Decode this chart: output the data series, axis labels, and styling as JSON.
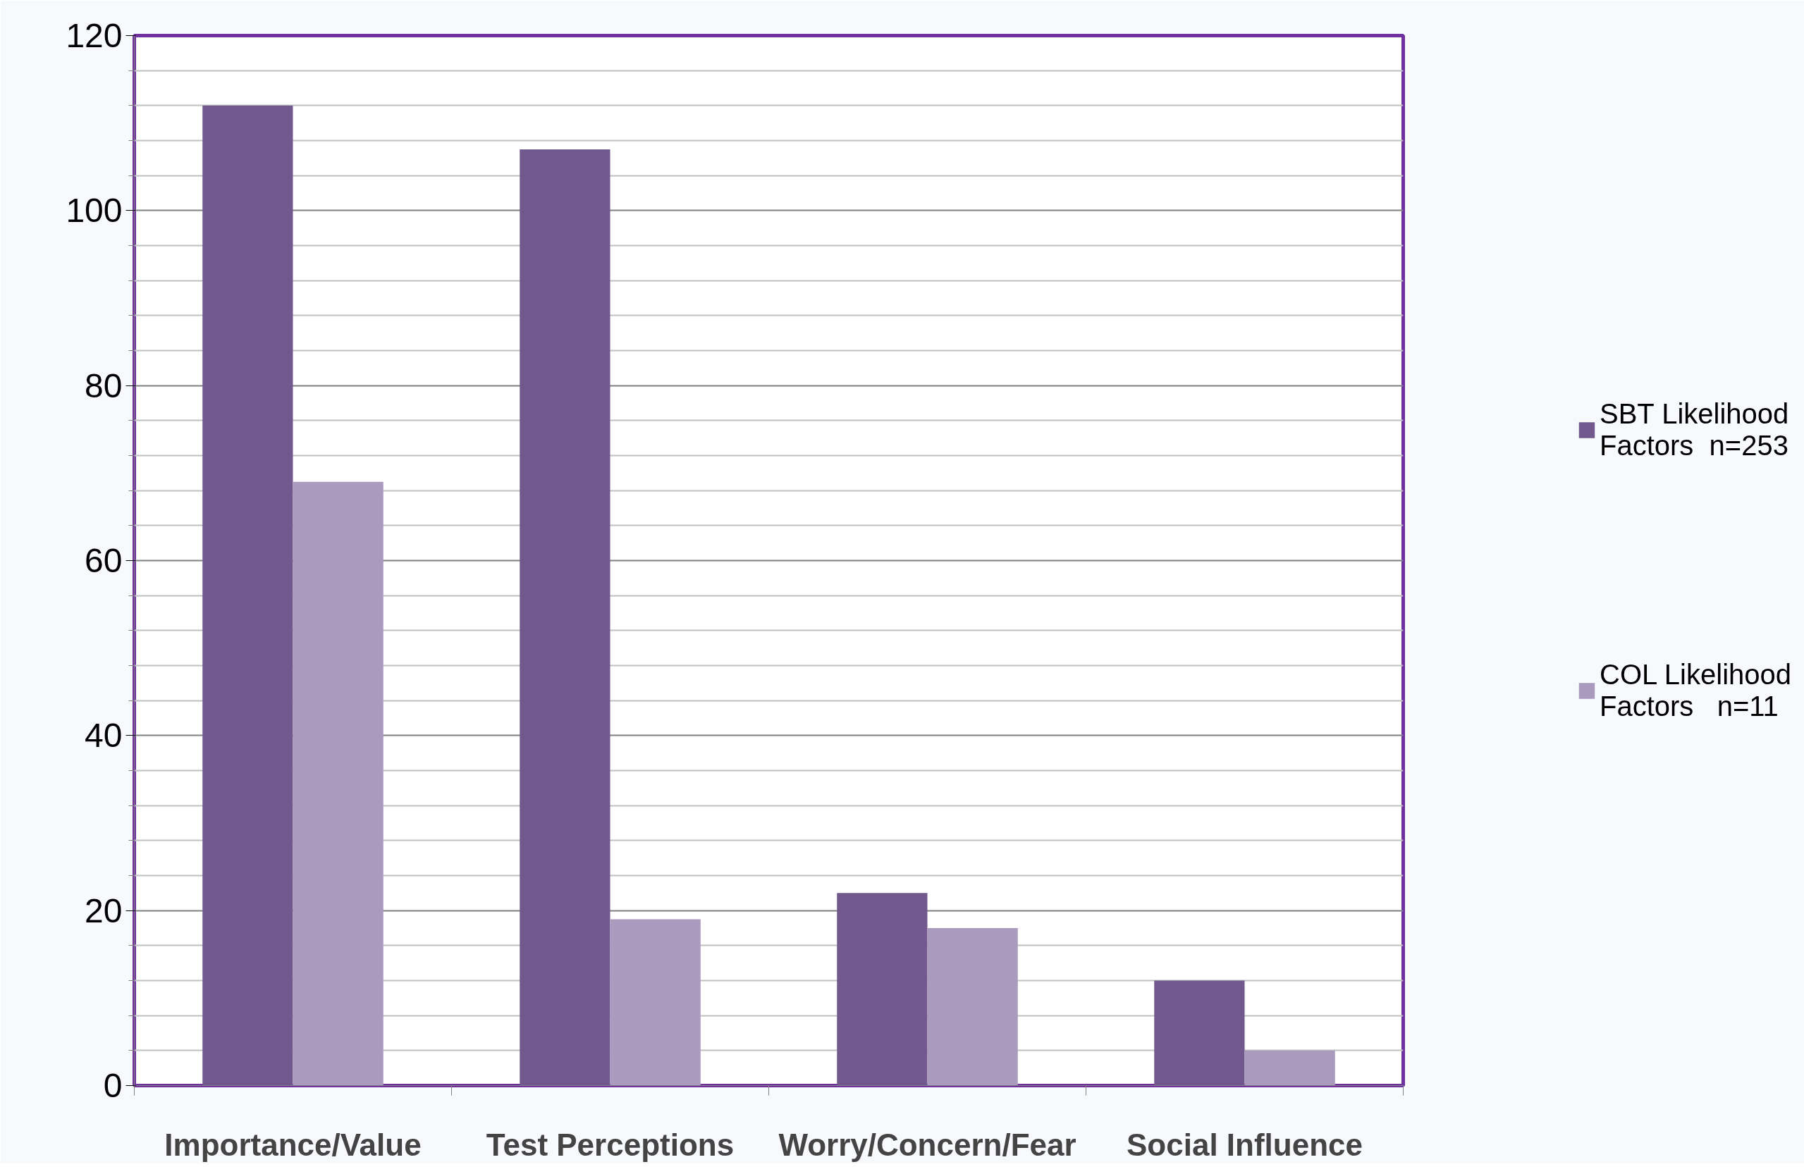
{
  "chart_data": {
    "type": "bar",
    "categories": [
      "Importance/Value",
      "Test Perceptions",
      "Worry/Concern/Fear",
      "Social Influence"
    ],
    "series": [
      {
        "name": "SBT Likelihood Factors  n=253",
        "color": "#71598e",
        "values": [
          112,
          107,
          22,
          12
        ]
      },
      {
        "name": "COL Likelihood Factors   n=11",
        "color": "#a99abe",
        "values": [
          69,
          19,
          18,
          4
        ]
      }
    ],
    "ylim": [
      0,
      120
    ],
    "yticks": [
      0,
      20,
      40,
      60,
      80,
      100,
      120
    ],
    "grid": "y",
    "legend": "right"
  }
}
